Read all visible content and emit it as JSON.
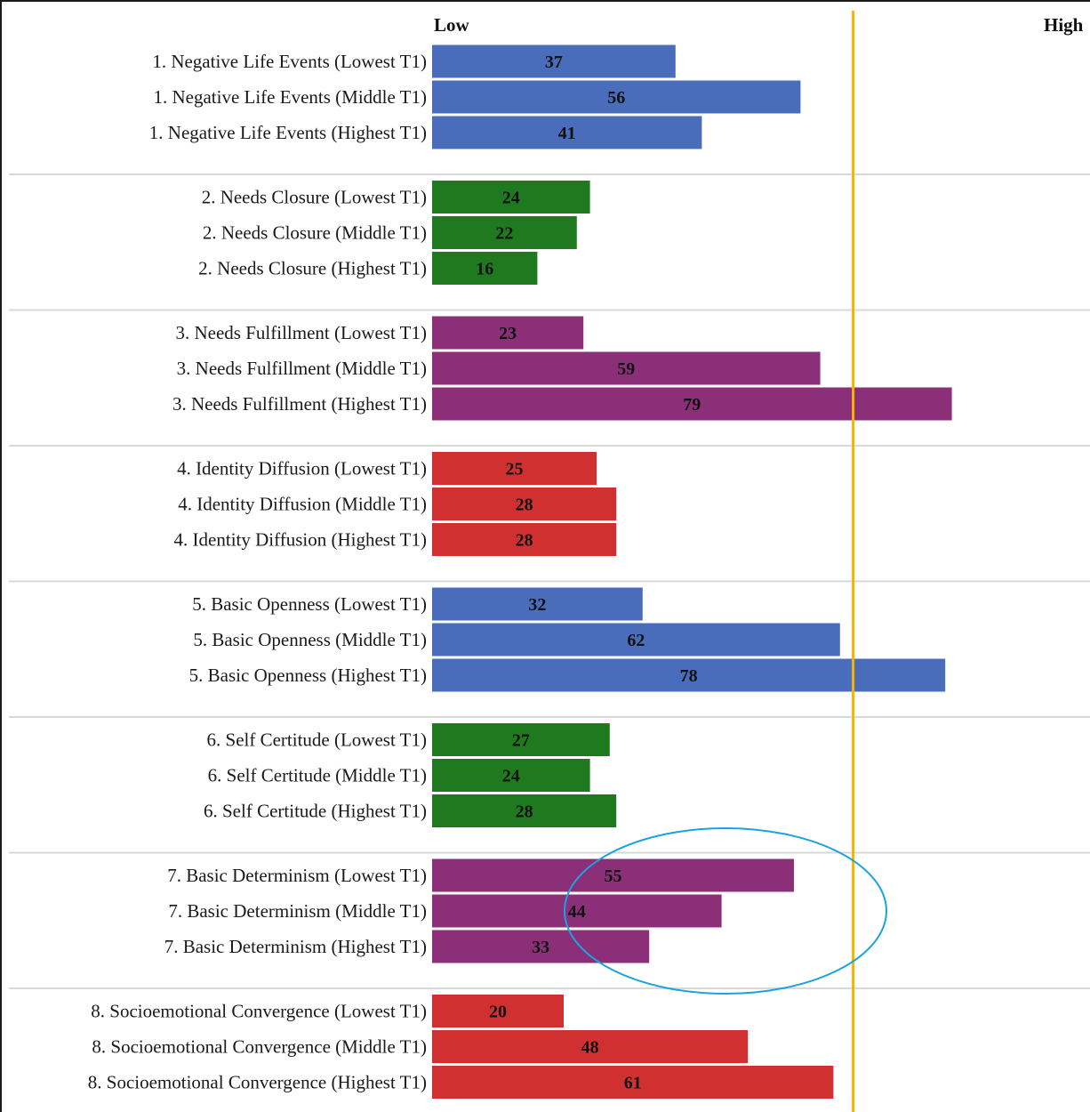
{
  "chart_data": {
    "type": "bar",
    "orientation": "horizontal",
    "scale_labels": {
      "low": "Low",
      "high": "High"
    },
    "xlim": [
      0,
      100
    ],
    "reference_line": {
      "value": 64,
      "color": "#f5b400"
    },
    "highlight_ellipse": {
      "group": "7. Basic Determinism",
      "color": "#1aa3e0"
    },
    "groups": [
      {
        "color": "#4a6dbb",
        "bars": [
          {
            "label": "1. Negative Life Events (Lowest T1)",
            "value": 37
          },
          {
            "label": "1. Negative Life Events (Middle T1)",
            "value": 56
          },
          {
            "label": "1. Negative Life Events (Highest T1)",
            "value": 41
          }
        ]
      },
      {
        "color": "#1f7a1f",
        "bars": [
          {
            "label": "2. Needs Closure (Lowest T1)",
            "value": 24
          },
          {
            "label": "2. Needs Closure (Middle T1)",
            "value": 22
          },
          {
            "label": "2. Needs Closure (Highest T1)",
            "value": 16
          }
        ]
      },
      {
        "color": "#8b2f78",
        "bars": [
          {
            "label": "3. Needs Fulfillment (Lowest T1)",
            "value": 23
          },
          {
            "label": "3. Needs Fulfillment (Middle T1)",
            "value": 59
          },
          {
            "label": "3. Needs Fulfillment (Highest T1)",
            "value": 79
          }
        ]
      },
      {
        "color": "#d13030",
        "bars": [
          {
            "label": "4. Identity Diffusion (Lowest T1)",
            "value": 25
          },
          {
            "label": "4. Identity Diffusion (Middle T1)",
            "value": 28
          },
          {
            "label": "4. Identity Diffusion (Highest T1)",
            "value": 28
          }
        ]
      },
      {
        "color": "#4a6dbb",
        "bars": [
          {
            "label": "5. Basic Openness (Lowest T1)",
            "value": 32
          },
          {
            "label": "5. Basic Openness (Middle T1)",
            "value": 62
          },
          {
            "label": "5. Basic Openness (Highest T1)",
            "value": 78
          }
        ]
      },
      {
        "color": "#1f7a1f",
        "bars": [
          {
            "label": "6. Self Certitude (Lowest T1)",
            "value": 27
          },
          {
            "label": "6. Self Certitude (Middle T1)",
            "value": 24
          },
          {
            "label": "6. Self Certitude (Highest T1)",
            "value": 28
          }
        ]
      },
      {
        "color": "#8b2f78",
        "bars": [
          {
            "label": "7. Basic Determinism (Lowest T1)",
            "value": 55
          },
          {
            "label": "7. Basic Determinism (Middle T1)",
            "value": 44
          },
          {
            "label": "7. Basic Determinism (Highest T1)",
            "value": 33
          }
        ]
      },
      {
        "color": "#d13030",
        "bars": [
          {
            "label": "8. Socioemotional Convergence (Lowest T1)",
            "value": 20
          },
          {
            "label": "8. Socioemotional Convergence (Middle T1)",
            "value": 48
          },
          {
            "label": "8. Socioemotional Convergence (Highest T1)",
            "value": 61
          }
        ]
      }
    ]
  }
}
